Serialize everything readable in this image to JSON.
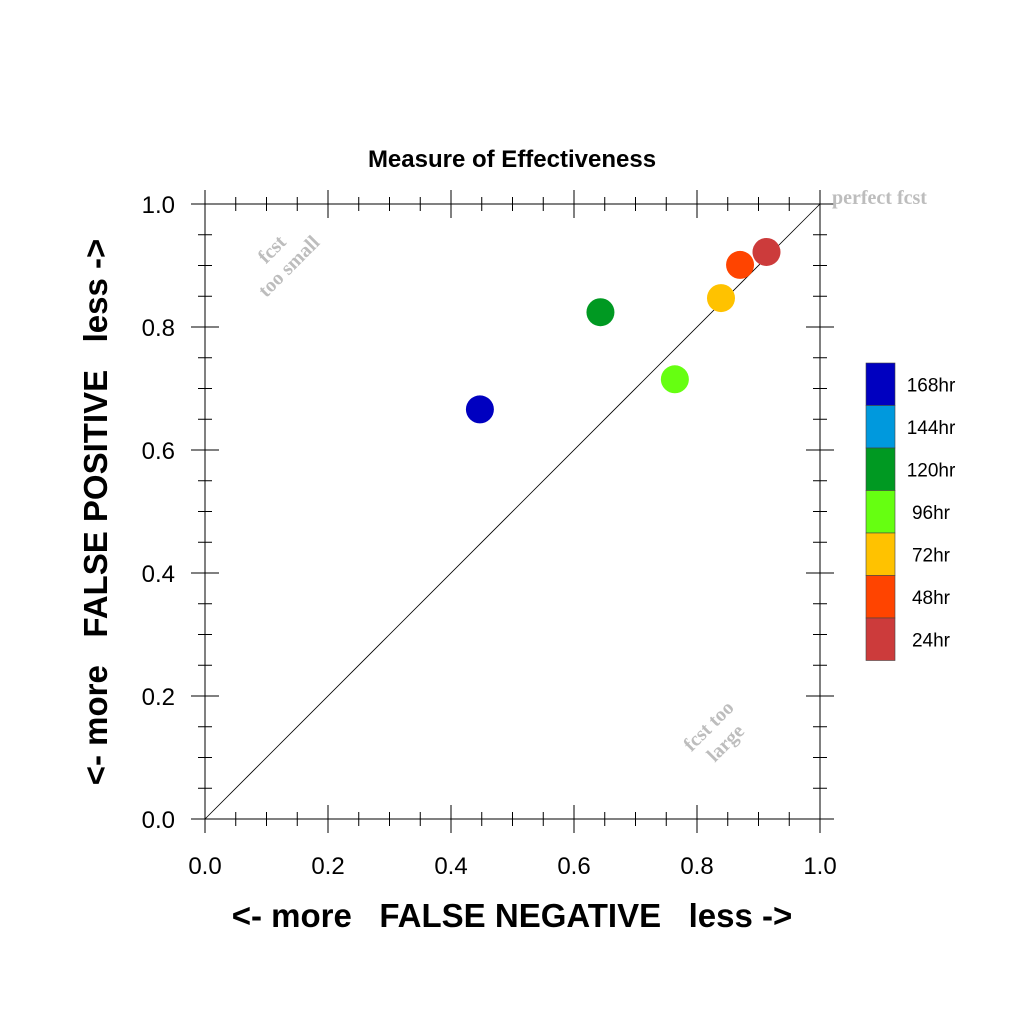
{
  "chart_data": {
    "type": "scatter",
    "title": "Measure of Effectiveness",
    "xlabel": "<- more   FALSE NEGATIVE   less ->",
    "ylabel": "<- more   FALSE POSITIVE   less ->",
    "xlim": [
      0.0,
      1.0
    ],
    "ylim": [
      0.0,
      1.0
    ],
    "xticks": [
      "0.0",
      "0.2",
      "0.4",
      "0.6",
      "0.8",
      "1.0"
    ],
    "yticks": [
      "0.0",
      "0.2",
      "0.4",
      "0.6",
      "0.8",
      "1.0"
    ],
    "grid": false,
    "diagonal_reference_line": true,
    "annotations": {
      "perfect": "perfect fcst",
      "too_small_line1": "fcst",
      "too_small_line2": "too small",
      "too_large_line1": "fcst too",
      "too_large_line2": "large"
    },
    "legend_position": "right",
    "legend": [
      {
        "label": "168hr",
        "color": "#0000c0"
      },
      {
        "label": "144hr",
        "color": "#0099dd"
      },
      {
        "label": "120hr",
        "color": "#009922"
      },
      {
        "label": "96hr",
        "color": "#66ff11"
      },
      {
        "label": "72hr",
        "color": "#ffc200"
      },
      {
        "label": "48hr",
        "color": "#ff4400"
      },
      {
        "label": "24hr",
        "color": "#cc3b3b"
      }
    ],
    "points": [
      {
        "label": "168hr",
        "x": 0.447,
        "y": 0.666,
        "color": "#0000c0"
      },
      {
        "label": "120hr",
        "x": 0.643,
        "y": 0.824,
        "color": "#009922"
      },
      {
        "label": "96hr",
        "x": 0.764,
        "y": 0.715,
        "color": "#66ff11"
      },
      {
        "label": "72hr",
        "x": 0.839,
        "y": 0.847,
        "color": "#ffc200"
      },
      {
        "label": "48hr",
        "x": 0.87,
        "y": 0.901,
        "color": "#ff4400"
      },
      {
        "label": "24hr",
        "x": 0.913,
        "y": 0.922,
        "color": "#cc3b3b"
      }
    ]
  }
}
